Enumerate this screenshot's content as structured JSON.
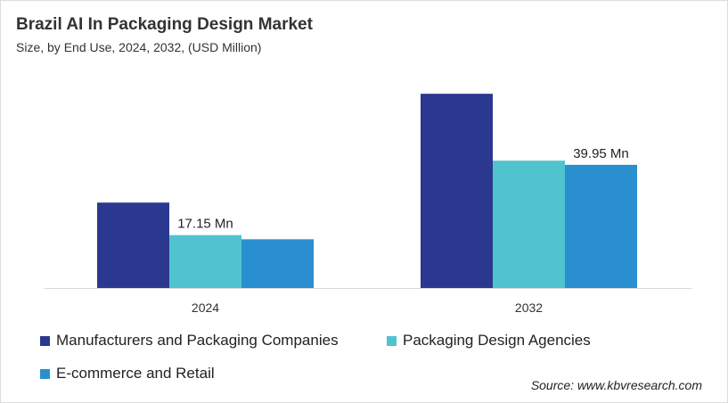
{
  "title": "Brazil AI In Packaging Design Market",
  "subtitle": "Size, by End Use, 2024, 2032, (USD Million)",
  "source": "Source: www.kbvresearch.com",
  "chart_data": {
    "type": "bar",
    "title": "Brazil AI In Packaging Design Market",
    "subtitle": "Size, by End Use, 2024, 2032, (USD Million)",
    "categories": [
      "2024",
      "2032"
    ],
    "series": [
      {
        "name": "Manufacturers and Packaging Companies",
        "color": "#2b388f",
        "values": [
          27.7,
          63.0
        ]
      },
      {
        "name": "Packaging Design Agencies",
        "color": "#4fc4cf",
        "values": [
          17.15,
          41.3
        ]
      },
      {
        "name": "E-commerce and Retail",
        "color": "#2a8fce",
        "values": [
          15.8,
          39.95
        ]
      }
    ],
    "data_labels": [
      {
        "series": 1,
        "category": 0,
        "text": "17.15 Mn"
      },
      {
        "series": 2,
        "category": 1,
        "text": "39.95 Mn"
      }
    ],
    "ylim": [
      0,
      70
    ],
    "grid": false,
    "y_axis_visible": false,
    "legend_position": "bottom"
  }
}
